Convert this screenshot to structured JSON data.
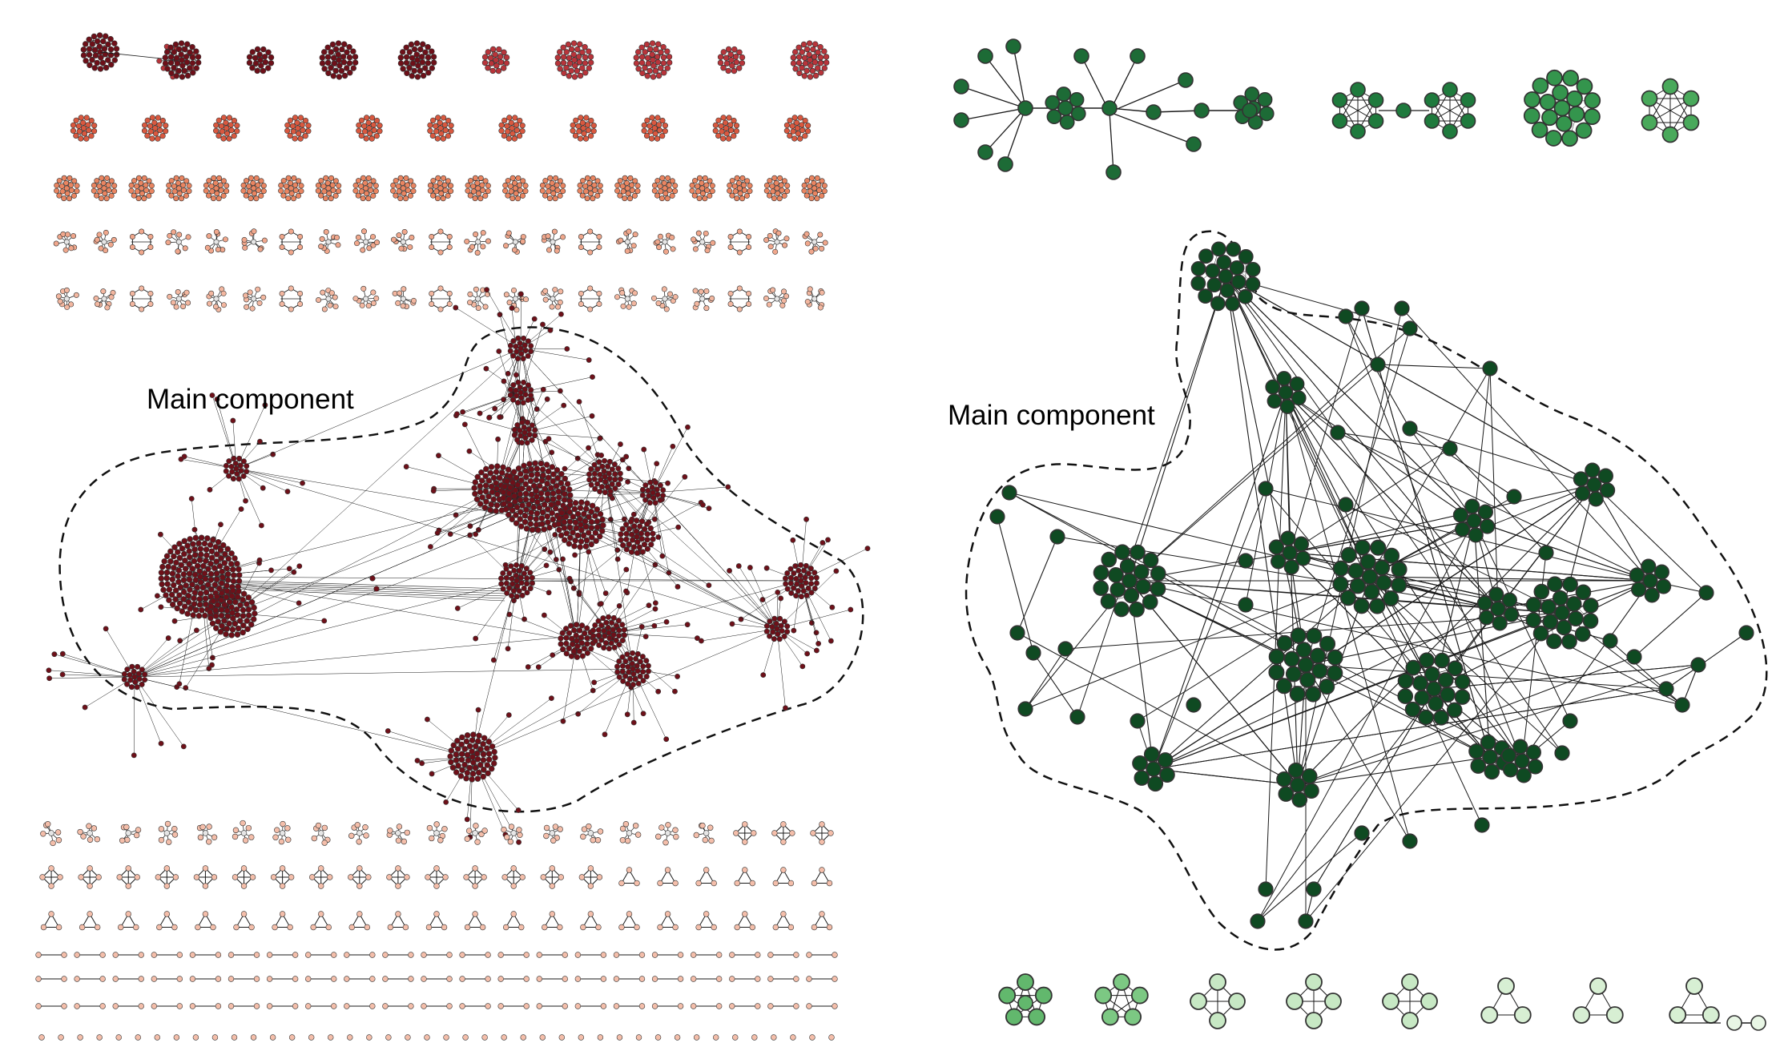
{
  "left_panel": {
    "label": "Main component",
    "colors": {
      "main": "#6e1019",
      "row_shades": [
        "#b8343a",
        "#d9583f",
        "#ea8561",
        "#f0a78c",
        "#f3b7a0"
      ],
      "light": "#f4beaa",
      "outline": "#111111"
    }
  },
  "right_panel": {
    "label": "Main component",
    "colors": {
      "main": "#0f4a22",
      "top_row": [
        "#1d6b36",
        "#1f7a3d",
        "#34954d",
        "#49a95b"
      ],
      "bottom_row": [
        "#62b86d",
        "#7cc883",
        "#c7e8c4",
        "#d7efd3",
        "#e8f6e5"
      ],
      "outline": "#111111"
    }
  }
}
